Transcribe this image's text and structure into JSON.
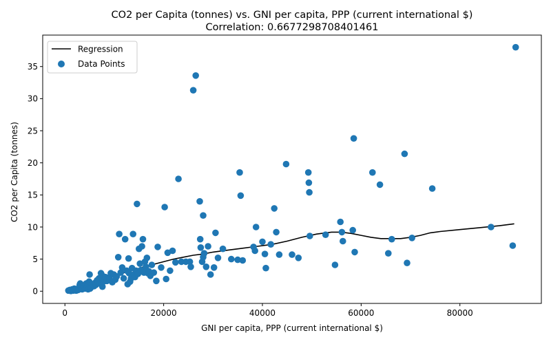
{
  "chart_data": {
    "type": "scatter",
    "title": "CO2 per Capita (tonnes) vs. GNI per capita, PPP (current international $)",
    "subtitle": "Correlation: 0.6677298708401461",
    "xlabel": "GNI per capita, PPP (current international $)",
    "ylabel": "CO2 per Capita (tonnes)",
    "xlim": [
      -4500,
      96500
    ],
    "ylim": [
      -1.9,
      39.9
    ],
    "xticks": [
      0,
      20000,
      40000,
      60000,
      80000
    ],
    "xtick_labels": [
      "0",
      "20000",
      "40000",
      "60000",
      "80000"
    ],
    "yticks": [
      0,
      5,
      10,
      15,
      20,
      25,
      30,
      35
    ],
    "ytick_labels": [
      "0",
      "5",
      "10",
      "15",
      "20",
      "25",
      "30",
      "35"
    ],
    "grid": false,
    "legend_position": "top-left",
    "colors": {
      "points": "#1f77b4",
      "regression": "#000000"
    },
    "series": [
      {
        "name": "Regression",
        "kind": "line",
        "x": [
          600,
          2000,
          4000,
          6000,
          8000,
          10000,
          12000,
          14000,
          16000,
          18000,
          20000,
          22000,
          24000,
          26000,
          28000,
          30000,
          33000,
          36000,
          39000,
          42000,
          45000,
          48000,
          51000,
          54000,
          56000,
          58000,
          60000,
          62000,
          64000,
          66000,
          68000,
          70000,
          72000,
          74000,
          76000,
          80000,
          84000,
          88000,
          91000
        ],
        "y": [
          0.1,
          0.3,
          0.7,
          1.3,
          1.8,
          2.3,
          2.9,
          3.3,
          3.8,
          4.2,
          4.6,
          5.0,
          5.3,
          5.6,
          5.8,
          6.1,
          6.4,
          6.7,
          7.0,
          7.3,
          7.8,
          8.4,
          8.9,
          9.2,
          9.2,
          9.0,
          8.7,
          8.4,
          8.2,
          8.2,
          8.2,
          8.4,
          8.7,
          9.1,
          9.3,
          9.6,
          9.9,
          10.2,
          10.5
        ]
      },
      {
        "name": "Data Points",
        "kind": "scatter",
        "points": [
          [
            700,
            0.1
          ],
          [
            1000,
            0.2
          ],
          [
            1200,
            0.05
          ],
          [
            1500,
            0.3
          ],
          [
            1700,
            0.1
          ],
          [
            1900,
            0.4
          ],
          [
            2100,
            0.2
          ],
          [
            2300,
            0.1
          ],
          [
            2500,
            0.3
          ],
          [
            2700,
            0.2
          ],
          [
            2900,
            0.6
          ],
          [
            3000,
            1.0
          ],
          [
            3100,
            1.2
          ],
          [
            3300,
            0.4
          ],
          [
            3500,
            0.3
          ],
          [
            3700,
            0.8
          ],
          [
            3900,
            0.5
          ],
          [
            4100,
            0.4
          ],
          [
            4300,
            1.2
          ],
          [
            4500,
            0.7
          ],
          [
            4700,
            0.3
          ],
          [
            4900,
            1.5
          ],
          [
            5000,
            2.6
          ],
          [
            5100,
            0.4
          ],
          [
            5300,
            0.6
          ],
          [
            5500,
            1.1
          ],
          [
            5700,
            0.9
          ],
          [
            5900,
            0.8
          ],
          [
            6100,
            1.3
          ],
          [
            6300,
            1.0
          ],
          [
            6500,
            1.7
          ],
          [
            6700,
            1.4
          ],
          [
            6900,
            2.0
          ],
          [
            7100,
            1.2
          ],
          [
            7300,
            2.8
          ],
          [
            7500,
            2.5
          ],
          [
            7600,
            0.7
          ],
          [
            7800,
            1.5
          ],
          [
            8000,
            1.8
          ],
          [
            8200,
            2.2
          ],
          [
            8500,
            1.6
          ],
          [
            8800,
            2.1
          ],
          [
            9000,
            1.9
          ],
          [
            9300,
            2.8
          ],
          [
            9600,
            1.4
          ],
          [
            9900,
            2.6
          ],
          [
            10200,
            1.8
          ],
          [
            10500,
            2.3
          ],
          [
            10800,
            5.3
          ],
          [
            11000,
            8.9
          ],
          [
            11300,
            2.9
          ],
          [
            11600,
            3.7
          ],
          [
            11900,
            2.0
          ],
          [
            12200,
            8.1
          ],
          [
            12500,
            3.2
          ],
          [
            12700,
            1.1
          ],
          [
            12900,
            5.1
          ],
          [
            13000,
            2.8
          ],
          [
            13200,
            1.5
          ],
          [
            13400,
            2.0
          ],
          [
            13600,
            3.6
          ],
          [
            13800,
            8.9
          ],
          [
            14000,
            2.6
          ],
          [
            14200,
            2.2
          ],
          [
            14400,
            3.2
          ],
          [
            14600,
            13.6
          ],
          [
            14800,
            2.7
          ],
          [
            15000,
            6.6
          ],
          [
            15200,
            4.3
          ],
          [
            15400,
            3.3
          ],
          [
            15600,
            7.0
          ],
          [
            15800,
            8.1
          ],
          [
            16000,
            2.9
          ],
          [
            16200,
            4.6
          ],
          [
            16400,
            3.8
          ],
          [
            16600,
            5.2
          ],
          [
            16800,
            2.8
          ],
          [
            17000,
            3.1
          ],
          [
            17300,
            2.4
          ],
          [
            17600,
            4.1
          ],
          [
            18000,
            2.9
          ],
          [
            18500,
            1.6
          ],
          [
            18800,
            6.9
          ],
          [
            19500,
            3.7
          ],
          [
            20200,
            13.1
          ],
          [
            20500,
            1.9
          ],
          [
            20800,
            6.0
          ],
          [
            21300,
            3.2
          ],
          [
            21800,
            6.3
          ],
          [
            22400,
            4.5
          ],
          [
            23000,
            17.5
          ],
          [
            23600,
            4.6
          ],
          [
            24500,
            4.6
          ],
          [
            25300,
            4.6
          ],
          [
            25500,
            3.8
          ],
          [
            26000,
            31.3
          ],
          [
            26500,
            33.6
          ],
          [
            27300,
            14.0
          ],
          [
            27400,
            8.1
          ],
          [
            27500,
            6.8
          ],
          [
            27800,
            4.6
          ],
          [
            28000,
            5.3
          ],
          [
            28000,
            11.8
          ],
          [
            28200,
            5.9
          ],
          [
            28600,
            3.8
          ],
          [
            29000,
            7.0
          ],
          [
            29500,
            2.6
          ],
          [
            30200,
            3.7
          ],
          [
            30500,
            9.1
          ],
          [
            31000,
            5.2
          ],
          [
            32000,
            6.6
          ],
          [
            33700,
            5.0
          ],
          [
            35000,
            4.9
          ],
          [
            35400,
            18.5
          ],
          [
            35600,
            14.9
          ],
          [
            36000,
            4.8
          ],
          [
            38200,
            6.9
          ],
          [
            38500,
            6.3
          ],
          [
            38700,
            10.0
          ],
          [
            40000,
            7.7
          ],
          [
            40500,
            5.8
          ],
          [
            40700,
            3.6
          ],
          [
            41700,
            7.3
          ],
          [
            42400,
            12.9
          ],
          [
            42800,
            9.2
          ],
          [
            43400,
            5.7
          ],
          [
            44800,
            19.8
          ],
          [
            46000,
            5.7
          ],
          [
            47300,
            5.2
          ],
          [
            49300,
            18.5
          ],
          [
            49400,
            16.9
          ],
          [
            49500,
            15.4
          ],
          [
            49600,
            8.6
          ],
          [
            52800,
            8.8
          ],
          [
            54700,
            4.1
          ],
          [
            55800,
            10.8
          ],
          [
            56100,
            9.2
          ],
          [
            56300,
            7.8
          ],
          [
            58300,
            9.5
          ],
          [
            58500,
            23.8
          ],
          [
            58700,
            6.1
          ],
          [
            62300,
            18.5
          ],
          [
            63800,
            16.6
          ],
          [
            65500,
            5.9
          ],
          [
            66200,
            8.1
          ],
          [
            68800,
            21.4
          ],
          [
            69300,
            4.4
          ],
          [
            70300,
            8.3
          ],
          [
            74400,
            16.0
          ],
          [
            86300,
            10.0
          ],
          [
            90700,
            7.1
          ],
          [
            91300,
            38.0
          ]
        ]
      }
    ]
  }
}
